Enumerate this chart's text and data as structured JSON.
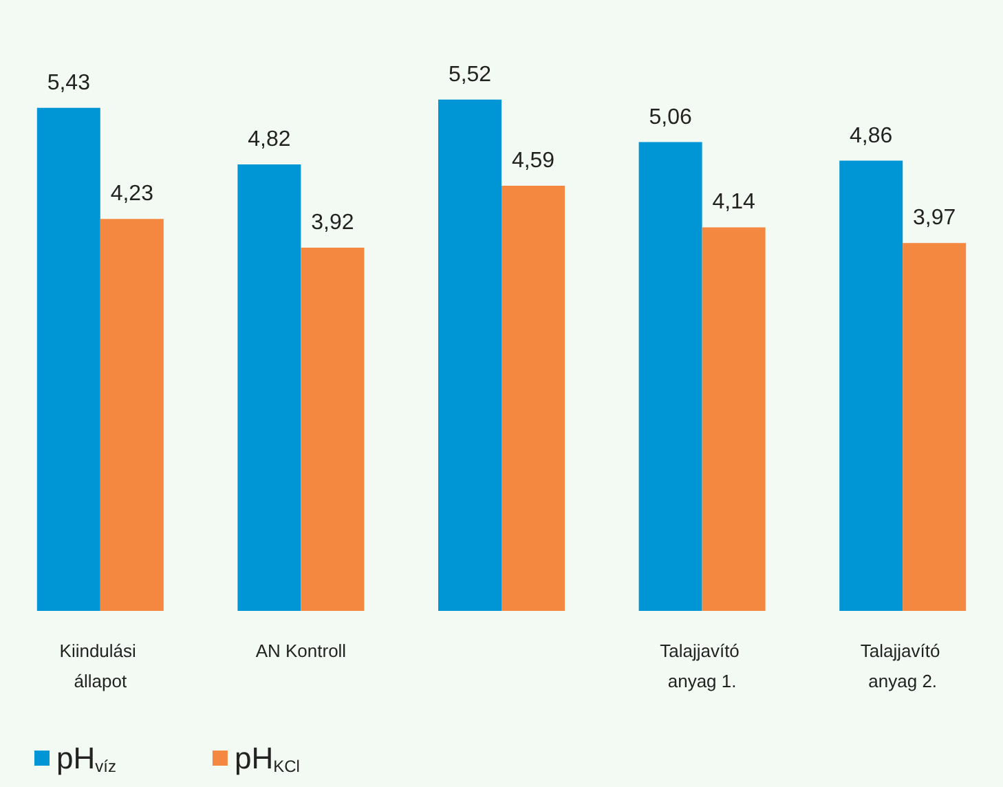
{
  "chart_data": {
    "type": "bar",
    "categories": [
      "Kiindulási állapot",
      "AN Kontroll",
      null,
      "Talajjavító anyag 1.",
      "Talajjavító anyag 2."
    ],
    "series": [
      {
        "name": "pH$_{víz}$",
        "color": "#0096d6",
        "values": [
          5.43,
          4.82,
          5.52,
          5.06,
          4.86
        ],
        "value_labels": [
          "5,43",
          "4,82",
          "5,52",
          "5,06",
          "4,86"
        ]
      },
      {
        "name": "pH$_{KCl}$",
        "color": "#f58840",
        "values": [
          4.23,
          3.92,
          4.59,
          4.14,
          3.97
        ],
        "value_labels": [
          "4,23",
          "3,92",
          "4,59",
          "4,14",
          "3,97"
        ]
      }
    ],
    "legend": "bottom left"
  }
}
